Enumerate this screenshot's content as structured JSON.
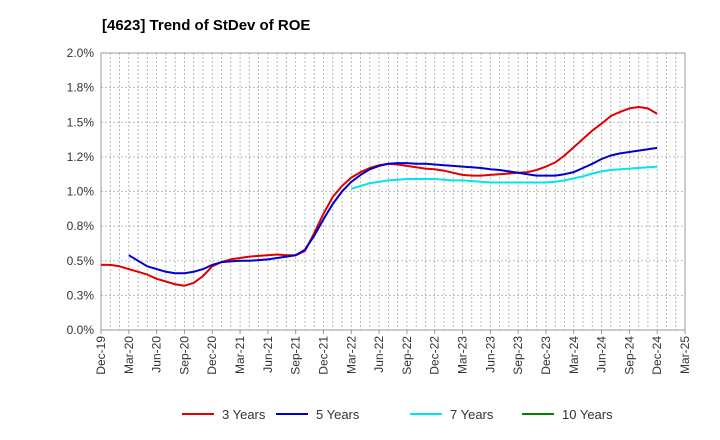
{
  "chart_data": {
    "type": "line",
    "title": "[4623]  Trend of StDev of ROE",
    "y_ticks": [
      "0.0%",
      "0.3%",
      "0.5%",
      "0.8%",
      "1.0%",
      "1.2%",
      "1.5%",
      "1.8%",
      "2.0%"
    ],
    "x_ticks": [
      "Dec-19",
      "Mar-20",
      "Jun-20",
      "Sep-20",
      "Dec-20",
      "Mar-21",
      "Jun-21",
      "Sep-21",
      "Dec-21",
      "Mar-22",
      "Jun-22",
      "Sep-22",
      "Dec-22",
      "Mar-23",
      "Jun-23",
      "Sep-23",
      "Dec-23",
      "Mar-24",
      "Jun-24",
      "Sep-24",
      "Dec-24",
      "Mar-25"
    ],
    "ylim": [
      0,
      2.0
    ],
    "grid": true,
    "legend_position": "bottom",
    "series": [
      {
        "name": "3 Years",
        "color": "#e00000",
        "x": [
          "Dec-19",
          "Jan-20",
          "Feb-20",
          "Mar-20",
          "Apr-20",
          "May-20",
          "Jun-20",
          "Jul-20",
          "Aug-20",
          "Sep-20",
          "Oct-20",
          "Nov-20",
          "Dec-20",
          "Jan-21",
          "Feb-21",
          "Mar-21",
          "Apr-21",
          "May-21",
          "Jun-21",
          "Jul-21",
          "Aug-21",
          "Sep-21",
          "Oct-21",
          "Nov-21",
          "Dec-21",
          "Jan-22",
          "Feb-22",
          "Mar-22",
          "Apr-22",
          "May-22",
          "Jun-22",
          "Jul-22",
          "Aug-22",
          "Sep-22",
          "Oct-22",
          "Nov-22",
          "Dec-22",
          "Jan-23",
          "Feb-23",
          "Mar-23",
          "Apr-23",
          "May-23",
          "Jun-23",
          "Jul-23",
          "Aug-23",
          "Sep-23",
          "Oct-23",
          "Nov-23",
          "Dec-23",
          "Jan-24",
          "Feb-24",
          "Mar-24",
          "Apr-24",
          "May-24",
          "Jun-24",
          "Jul-24",
          "Aug-24",
          "Sep-24",
          "Oct-24",
          "Nov-24",
          "Dec-24"
        ],
        "values": [
          0.47,
          0.47,
          0.46,
          0.44,
          0.42,
          0.4,
          0.37,
          0.35,
          0.33,
          0.32,
          0.34,
          0.39,
          0.46,
          0.49,
          0.51,
          0.52,
          0.53,
          0.535,
          0.54,
          0.545,
          0.54,
          0.54,
          0.57,
          0.7,
          0.84,
          0.96,
          1.04,
          1.1,
          1.14,
          1.17,
          1.19,
          1.2,
          1.195,
          1.185,
          1.175,
          1.165,
          1.16,
          1.15,
          1.135,
          1.12,
          1.115,
          1.115,
          1.12,
          1.125,
          1.13,
          1.135,
          1.14,
          1.155,
          1.18,
          1.21,
          1.26,
          1.32,
          1.38,
          1.44,
          1.49,
          1.545,
          1.575,
          1.6,
          1.61,
          1.6,
          1.56
        ]
      },
      {
        "name": "5 Years",
        "color": "#0000cc",
        "x": [
          "Mar-20",
          "Apr-20",
          "May-20",
          "Jun-20",
          "Jul-20",
          "Aug-20",
          "Sep-20",
          "Oct-20",
          "Nov-20",
          "Dec-20",
          "Jan-21",
          "Feb-21",
          "Mar-21",
          "Apr-21",
          "May-21",
          "Jun-21",
          "Jul-21",
          "Aug-21",
          "Sep-21",
          "Oct-21",
          "Nov-21",
          "Dec-21",
          "Jan-22",
          "Feb-22",
          "Mar-22",
          "Apr-22",
          "May-22",
          "Jun-22",
          "Jul-22",
          "Aug-22",
          "Sep-22",
          "Oct-22",
          "Nov-22",
          "Dec-22",
          "Jan-23",
          "Feb-23",
          "Mar-23",
          "Apr-23",
          "May-23",
          "Jun-23",
          "Jul-23",
          "Aug-23",
          "Sep-23",
          "Oct-23",
          "Nov-23",
          "Dec-23",
          "Jan-24",
          "Feb-24",
          "Mar-24",
          "Apr-24",
          "May-24",
          "Jun-24",
          "Jul-24",
          "Aug-24",
          "Sep-24",
          "Oct-24",
          "Nov-24",
          "Dec-24"
        ],
        "values": [
          0.54,
          0.5,
          0.46,
          0.44,
          0.42,
          0.41,
          0.41,
          0.42,
          0.44,
          0.47,
          0.49,
          0.495,
          0.5,
          0.5,
          0.505,
          0.51,
          0.52,
          0.53,
          0.54,
          0.58,
          0.68,
          0.8,
          0.91,
          1.0,
          1.07,
          1.12,
          1.16,
          1.185,
          1.2,
          1.205,
          1.205,
          1.2,
          1.2,
          1.195,
          1.19,
          1.185,
          1.18,
          1.175,
          1.17,
          1.16,
          1.155,
          1.145,
          1.135,
          1.125,
          1.115,
          1.115,
          1.115,
          1.125,
          1.14,
          1.17,
          1.2,
          1.235,
          1.26,
          1.275,
          1.285,
          1.295,
          1.305,
          1.315
        ]
      },
      {
        "name": "7 Years",
        "color": "#00e5ee",
        "x": [
          "Mar-22",
          "Apr-22",
          "May-22",
          "Jun-22",
          "Jul-22",
          "Aug-22",
          "Sep-22",
          "Oct-22",
          "Nov-22",
          "Dec-22",
          "Jan-23",
          "Feb-23",
          "Mar-23",
          "Apr-23",
          "May-23",
          "Jun-23",
          "Jul-23",
          "Aug-23",
          "Sep-23",
          "Oct-23",
          "Nov-23",
          "Dec-23",
          "Jan-24",
          "Feb-24",
          "Mar-24",
          "Apr-24",
          "May-24",
          "Jun-24",
          "Jul-24",
          "Aug-24",
          "Sep-24",
          "Oct-24",
          "Nov-24",
          "Dec-24"
        ],
        "values": [
          1.02,
          1.04,
          1.06,
          1.07,
          1.08,
          1.085,
          1.09,
          1.09,
          1.09,
          1.09,
          1.085,
          1.08,
          1.08,
          1.075,
          1.07,
          1.065,
          1.065,
          1.065,
          1.065,
          1.065,
          1.065,
          1.065,
          1.07,
          1.08,
          1.095,
          1.11,
          1.13,
          1.145,
          1.155,
          1.16,
          1.165,
          1.17,
          1.175,
          1.18
        ]
      },
      {
        "name": "10 Years",
        "color": "#008000",
        "x": [],
        "values": []
      }
    ]
  }
}
